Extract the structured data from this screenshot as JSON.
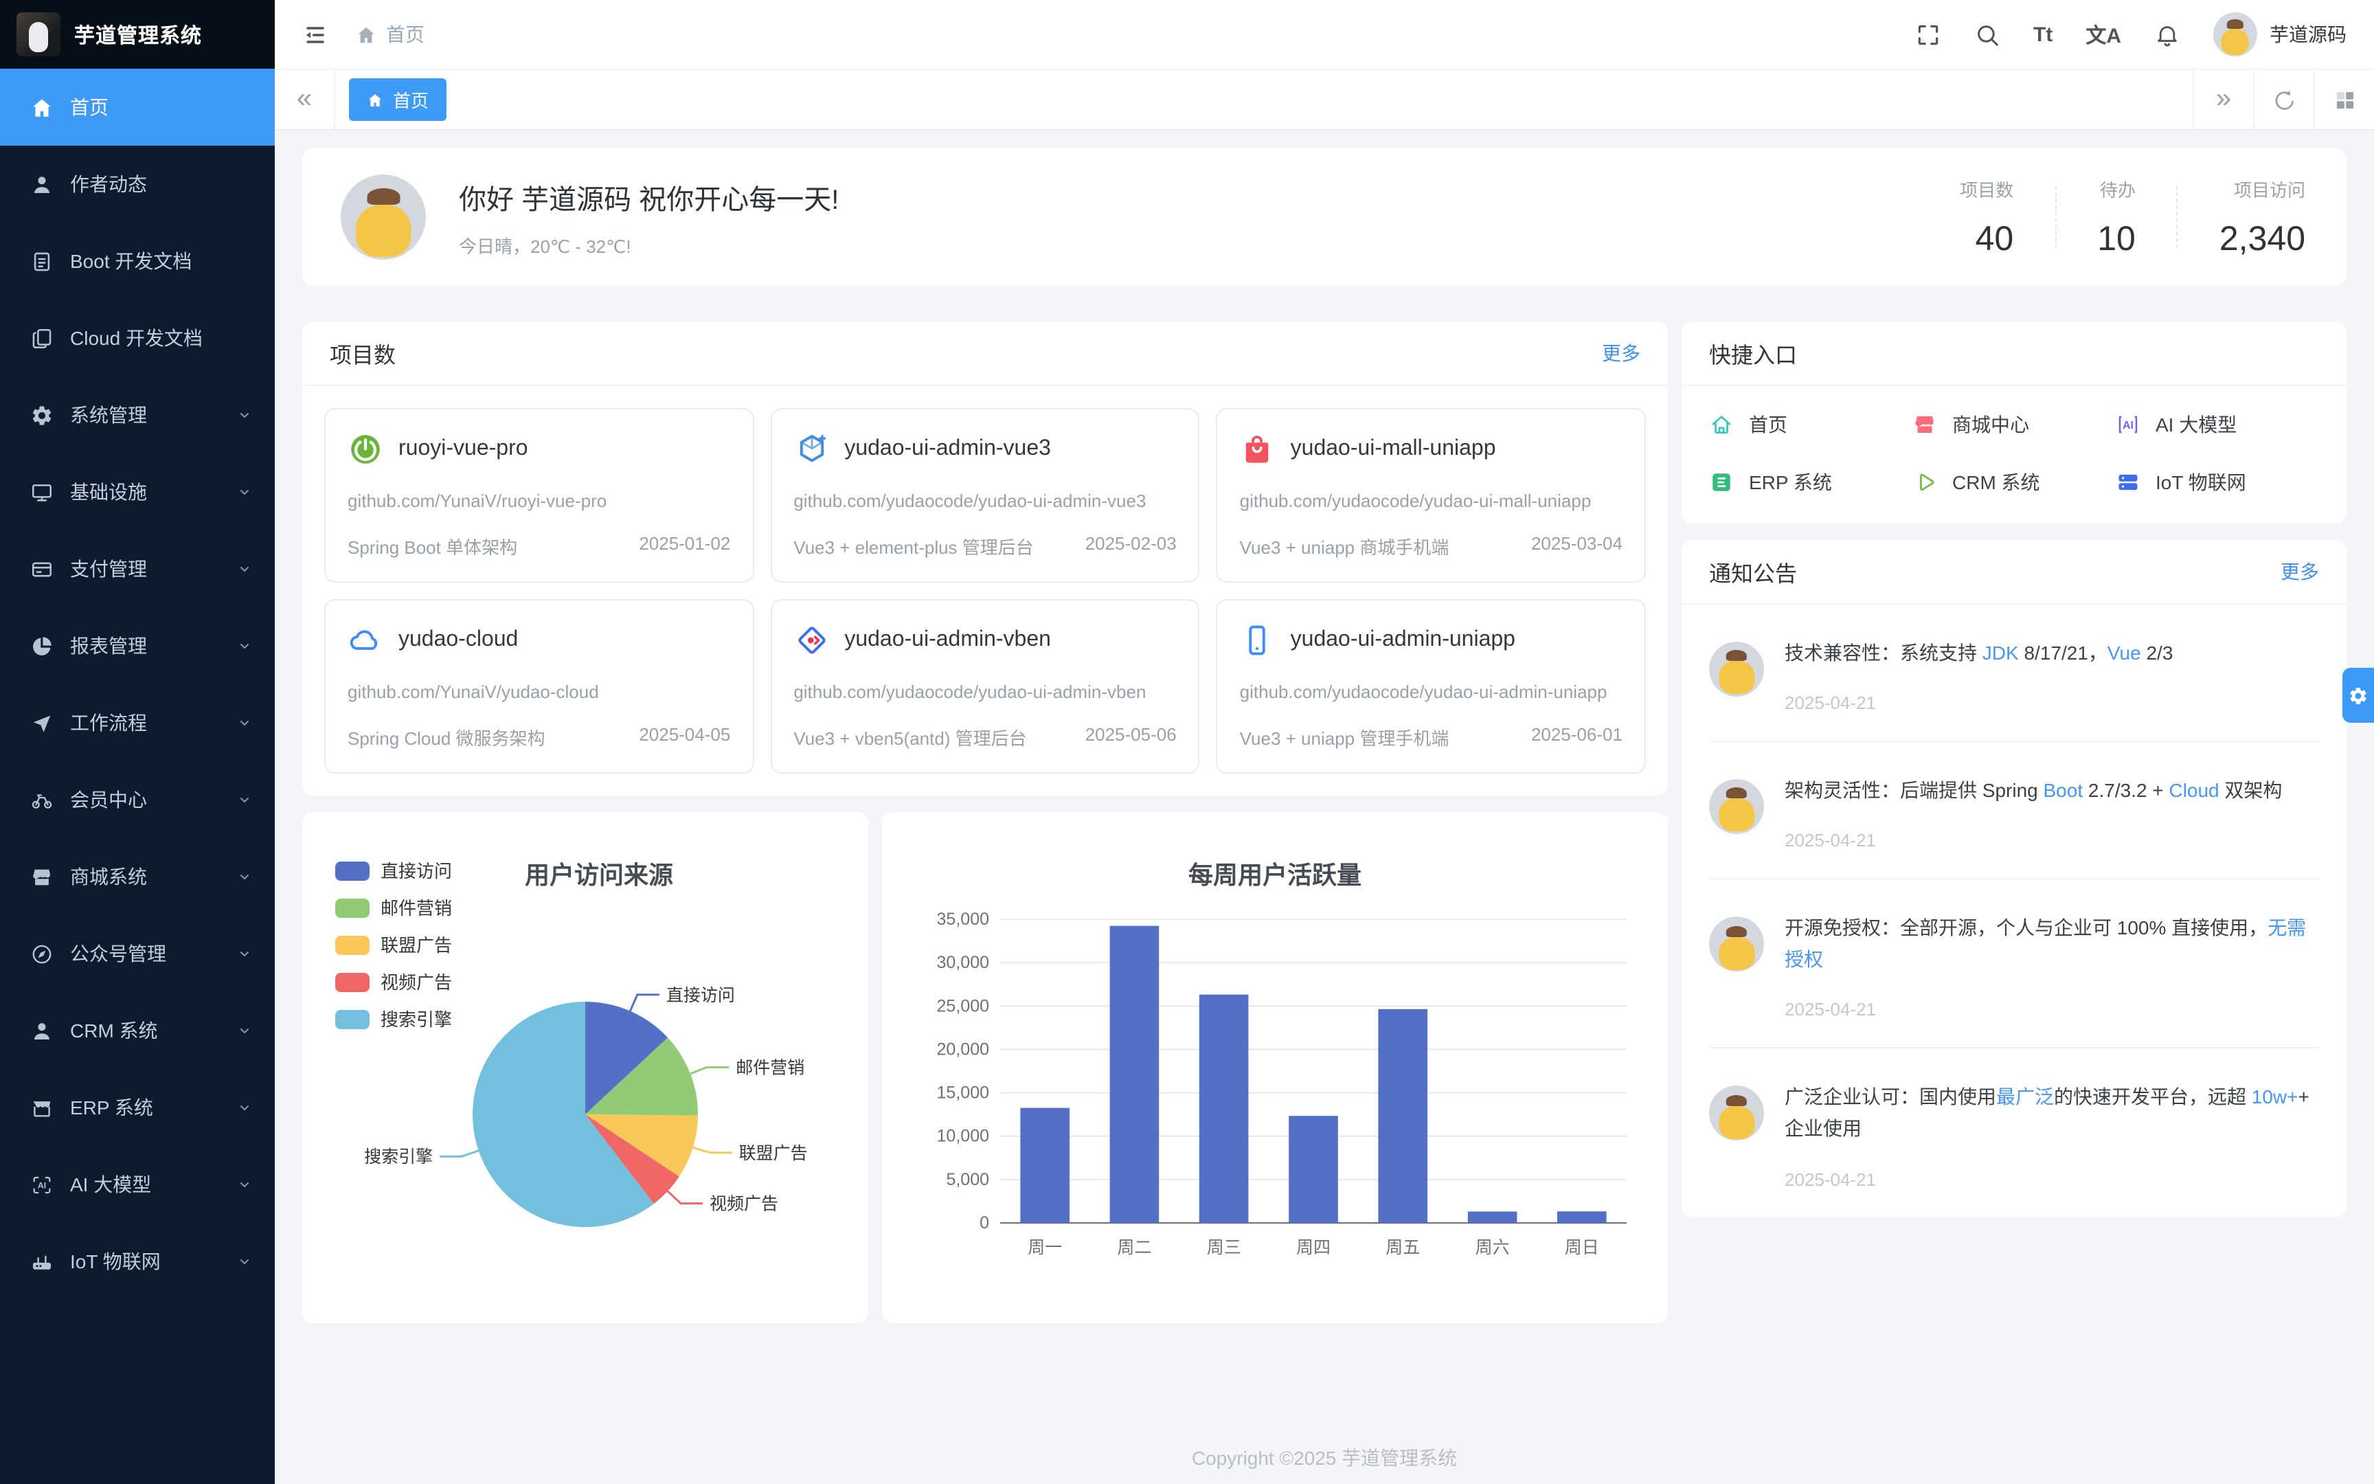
{
  "app": {
    "title": "芋道管理系统",
    "footer": "Copyright ©2025 芋道管理系统",
    "accent_color": "#3d9bf7"
  },
  "topbar": {
    "breadcrumb_home": "首页",
    "font_size_label": "Tt",
    "lang_label": "文A",
    "username": "芋道源码"
  },
  "tabs": {
    "active_label": "首页",
    "prev_icon": "«",
    "next_icon": "»"
  },
  "sidebar": {
    "items": [
      {
        "key": "home",
        "icon": "home",
        "label": "首页",
        "active": true,
        "children": false
      },
      {
        "key": "author",
        "icon": "user",
        "label": "作者动态",
        "active": false,
        "children": false
      },
      {
        "key": "boot-doc",
        "icon": "doc",
        "label": "Boot 开发文档",
        "active": false,
        "children": false
      },
      {
        "key": "cloud-doc",
        "icon": "docs",
        "label": "Cloud 开发文档",
        "active": false,
        "children": false
      },
      {
        "key": "system",
        "icon": "gear",
        "label": "系统管理",
        "active": false,
        "children": true
      },
      {
        "key": "infra",
        "icon": "monitor",
        "label": "基础设施",
        "active": false,
        "children": true
      },
      {
        "key": "pay",
        "icon": "pay",
        "label": "支付管理",
        "active": false,
        "children": true
      },
      {
        "key": "report",
        "icon": "pie",
        "label": "报表管理",
        "active": false,
        "children": true
      },
      {
        "key": "workflow",
        "icon": "flow",
        "label": "工作流程",
        "active": false,
        "children": true
      },
      {
        "key": "member",
        "icon": "bike",
        "label": "会员中心",
        "active": false,
        "children": true
      },
      {
        "key": "mall",
        "icon": "shop",
        "label": "商城系统",
        "active": false,
        "children": true
      },
      {
        "key": "mp",
        "icon": "compass",
        "label": "公众号管理",
        "active": false,
        "children": true
      },
      {
        "key": "crm",
        "icon": "user",
        "label": "CRM 系统",
        "active": false,
        "children": true
      },
      {
        "key": "erp",
        "icon": "store",
        "label": "ERP 系统",
        "active": false,
        "children": true
      },
      {
        "key": "ai",
        "icon": "ai",
        "label": "AI 大模型",
        "active": false,
        "children": true
      },
      {
        "key": "iot",
        "icon": "iot",
        "label": "IoT 物联网",
        "active": false,
        "children": true
      }
    ]
  },
  "welcome": {
    "greeting": "你好 芋道源码 祝你开心每一天!",
    "weather": "今日晴，20℃ - 32℃!",
    "stats": [
      {
        "label": "项目数",
        "value": "40"
      },
      {
        "label": "待办",
        "value": "10"
      },
      {
        "label": "项目访问",
        "value": "2,340"
      }
    ]
  },
  "projects": {
    "title": "项目数",
    "more_label": "更多",
    "cards": [
      {
        "name": "ruoyi-vue-pro",
        "url": "github.com/YunaiV/ruoyi-vue-pro",
        "desc": "Spring Boot 单体架构",
        "date": "2025-01-02",
        "icon": "spring",
        "color": "#67b637"
      },
      {
        "name": "yudao-ui-admin-vue3",
        "url": "github.com/yudaocode/yudao-ui-admin-vue3",
        "desc": "Vue3 + element-plus 管理后台",
        "date": "2025-02-03",
        "icon": "hex",
        "color": "#3a8ee6"
      },
      {
        "name": "yudao-ui-mall-uniapp",
        "url": "github.com/yudaocode/yudao-ui-mall-uniapp",
        "desc": "Vue3 + uniapp 商城手机端",
        "date": "2025-03-04",
        "icon": "bag",
        "color": "#f4525c"
      },
      {
        "name": "yudao-cloud",
        "url": "github.com/YunaiV/yudao-cloud",
        "desc": "Spring Cloud 微服务架构",
        "date": "2025-04-05",
        "icon": "cloud",
        "color": "#3f8ef6"
      },
      {
        "name": "yudao-ui-admin-vben",
        "url": "github.com/yudaocode/yudao-ui-admin-vben",
        "desc": "Vue3 + vben5(antd) 管理后台",
        "date": "2025-05-06",
        "icon": "diamond",
        "color": "#3d6cf0"
      },
      {
        "name": "yudao-ui-admin-uniapp",
        "url": "github.com/yudaocode/yudao-ui-admin-uniapp",
        "desc": "Vue3 + uniapp 管理手机端",
        "date": "2025-06-01",
        "icon": "phone",
        "color": "#3f8ef6"
      }
    ]
  },
  "quick": {
    "title": "快捷入口",
    "items": [
      {
        "key": "home",
        "icon": "home-o",
        "color": "#35c8c1",
        "label": "首页"
      },
      {
        "key": "mall-center",
        "icon": "shop",
        "color": "#fb6b7c",
        "label": "商城中心"
      },
      {
        "key": "ai-model",
        "icon": "ai-badge",
        "color": "#7c57f2",
        "label": "AI 大模型"
      },
      {
        "key": "erp",
        "icon": "erp-box",
        "color": "#2fbe7b",
        "label": "ERP 系统"
      },
      {
        "key": "crm",
        "icon": "play",
        "color": "#6cc23f",
        "label": "CRM 系统"
      },
      {
        "key": "iot",
        "icon": "server",
        "color": "#3d6ef0",
        "label": "IoT 物联网"
      }
    ]
  },
  "notices": {
    "title": "通知公告",
    "more_label": "更多",
    "items": [
      {
        "segments": [
          {
            "text": "技术兼容性：系统支持 ",
            "hl": false
          },
          {
            "text": "JDK",
            "hl": true
          },
          {
            "text": " 8/17/21，",
            "hl": false
          },
          {
            "text": "Vue",
            "hl": true
          },
          {
            "text": " 2/3",
            "hl": false
          }
        ],
        "date": "2025-04-21"
      },
      {
        "segments": [
          {
            "text": "架构灵活性：后端提供 Spring ",
            "hl": false
          },
          {
            "text": "Boot",
            "hl": true
          },
          {
            "text": " 2.7/3.2 + ",
            "hl": false
          },
          {
            "text": "Cloud",
            "hl": true
          },
          {
            "text": " 双架构",
            "hl": false
          }
        ],
        "date": "2025-04-21"
      },
      {
        "segments": [
          {
            "text": "开源免授权：全部开源，个人与企业可 100% 直接使用，",
            "hl": false
          },
          {
            "text": "无需授权",
            "hl": true
          }
        ],
        "date": "2025-04-21"
      },
      {
        "segments": [
          {
            "text": "广泛企业认可：国内使用",
            "hl": false
          },
          {
            "text": "最广泛",
            "hl": true
          },
          {
            "text": "的快速开发平台，远超 ",
            "hl": false
          },
          {
            "text": "10w+",
            "hl": true
          },
          {
            "text": "+ 企业使用",
            "hl": false
          }
        ],
        "date": "2025-04-21"
      }
    ]
  },
  "chart_data": [
    {
      "type": "pie",
      "title": "用户访问来源",
      "legend_position": "top-left",
      "labels": [
        "直接访问",
        "邮件营销",
        "联盟广告",
        "视频广告",
        "搜索引擎"
      ],
      "values": [
        335,
        310,
        234,
        135,
        1548
      ],
      "colors": [
        "#5470c6",
        "#91cc75",
        "#fac858",
        "#ee6666",
        "#73c0de"
      ],
      "start_angle_deg": -90,
      "clockwise": true
    },
    {
      "type": "bar",
      "title": "每周用户活跃量",
      "categories": [
        "周一",
        "周二",
        "周三",
        "周四",
        "周五",
        "周六",
        "周日"
      ],
      "values": [
        13253,
        34235,
        26321,
        12340,
        24643,
        1322,
        1324
      ],
      "ylim": [
        0,
        35000
      ],
      "ytick_step": 5000,
      "bar_color": "#5470c6",
      "grid": true,
      "legend": false
    }
  ]
}
